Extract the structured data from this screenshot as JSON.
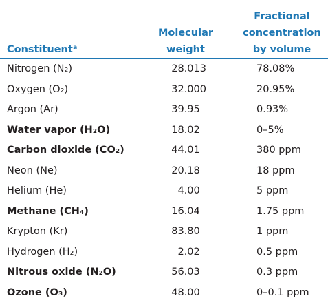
{
  "table": {
    "header": [
      [
        "Constituentᵃ"
      ],
      [
        "Molecular",
        "weight"
      ],
      [
        "Fractional",
        "concentration",
        "by volume"
      ]
    ],
    "rows": [
      {
        "cells": [
          "Nitrogen (N₂)",
          "28.013",
          "78.08%"
        ],
        "bold": false
      },
      {
        "cells": [
          "Oxygen (O₂)",
          "32.000",
          "20.95%"
        ],
        "bold": false
      },
      {
        "cells": [
          "Argon (Ar)",
          "39.95",
          "0.93%"
        ],
        "bold": false
      },
      {
        "cells": [
          "Water vapor (H₂O)",
          "18.02",
          "0–5%"
        ],
        "bold": true
      },
      {
        "cells": [
          "Carbon dioxide (CO₂)",
          "44.01",
          "380 ppm"
        ],
        "bold": true
      },
      {
        "cells": [
          "Neon (Ne)",
          "20.18",
          "18 ppm"
        ],
        "bold": false
      },
      {
        "cells": [
          "Helium (He)",
          "4.00",
          "5 ppm"
        ],
        "bold": false
      },
      {
        "cells": [
          "Methane (CH₄)",
          "16.04",
          "1.75 ppm"
        ],
        "bold": true
      },
      {
        "cells": [
          "Krypton (Kr)",
          "83.80",
          "1 ppm"
        ],
        "bold": false
      },
      {
        "cells": [
          "Hydrogen (H₂)",
          "2.02",
          "0.5 ppm"
        ],
        "bold": false
      },
      {
        "cells": [
          "Nitrous oxide (N₂O)",
          "56.03",
          "0.3 ppm"
        ],
        "bold": true
      },
      {
        "cells": [
          "Ozone (O₃)",
          "48.00",
          "0–0.1 ppm"
        ],
        "bold": true
      }
    ]
  }
}
